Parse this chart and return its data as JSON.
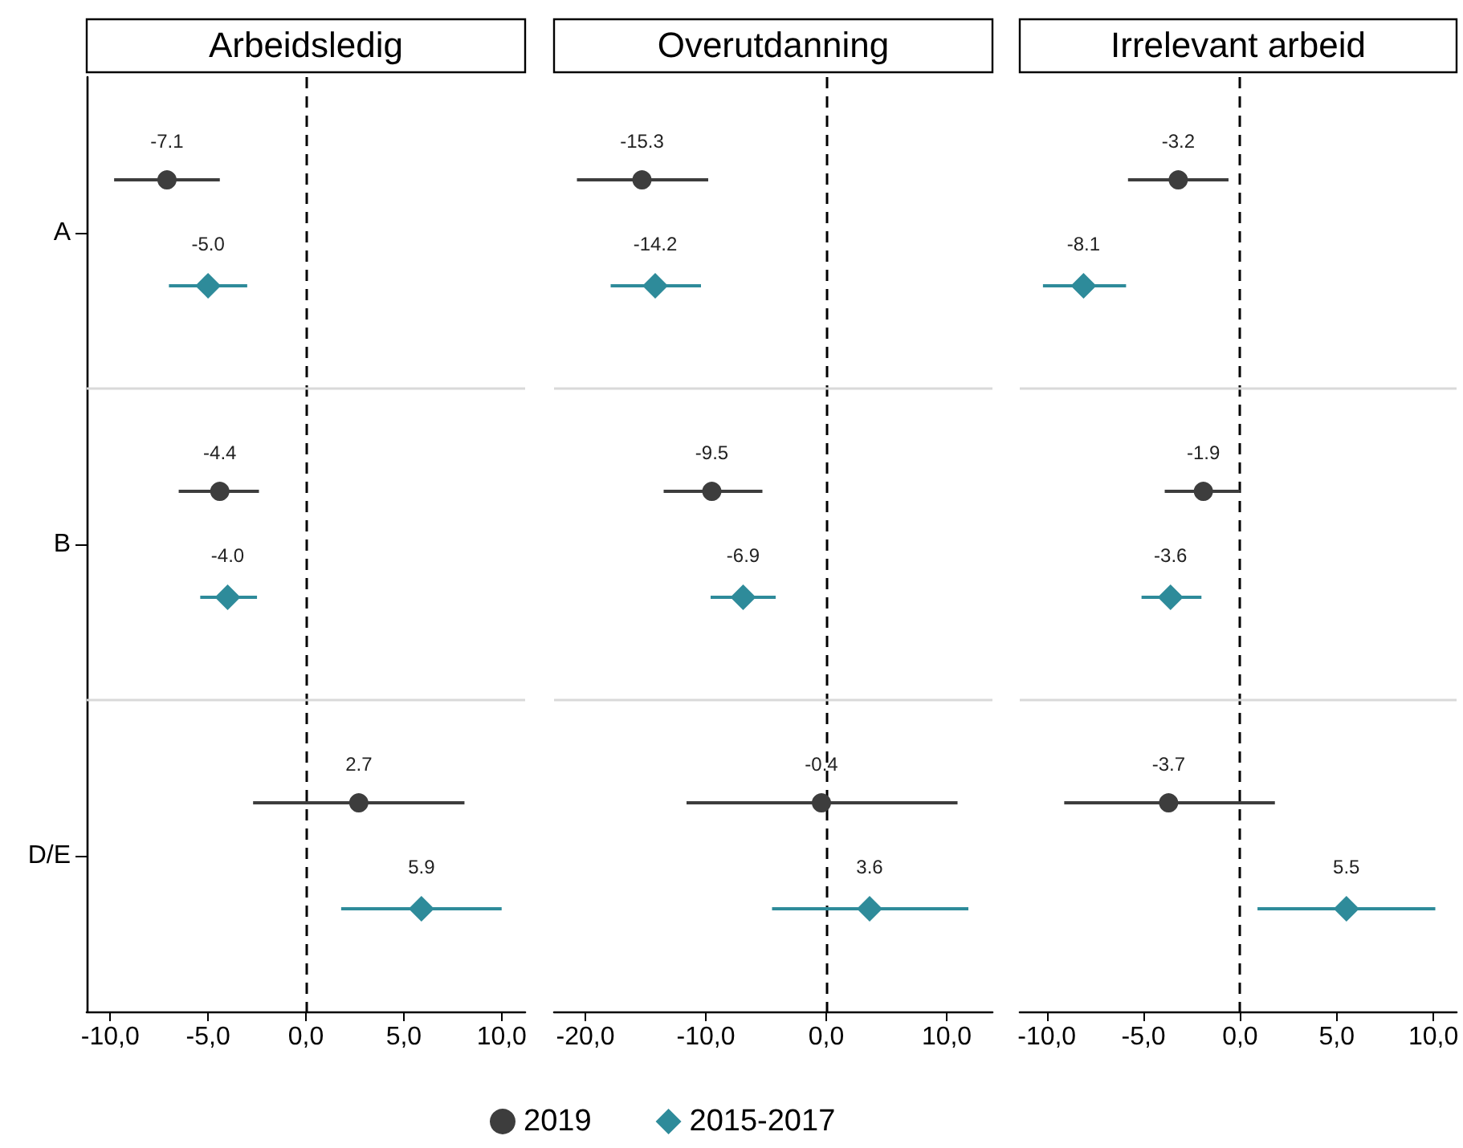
{
  "chart_data": [
    {
      "type": "scatter",
      "orientation": "horizontal",
      "title": "Arbeidsledig",
      "categories": [
        "A",
        "B",
        "D/E"
      ],
      "xlim": [
        -11.2,
        11.2
      ],
      "xticks": [
        {
          "value": -10,
          "label": "-10,0"
        },
        {
          "value": -5,
          "label": "-5,0"
        },
        {
          "value": 0,
          "label": "0,0"
        },
        {
          "value": 5,
          "label": "5,0"
        },
        {
          "value": 10,
          "label": "10,0"
        }
      ],
      "grid": "y",
      "legend": "bottom",
      "line_style": "solid",
      "ref_lines": [
        {
          "axis": "x",
          "value": 0,
          "color": "#000000",
          "line_style": "dashed"
        }
      ],
      "series": [
        {
          "name": "2019",
          "color": "#3d3d3d",
          "marker": "circle",
          "values": [
            -7.1,
            -4.4,
            2.7
          ],
          "errors": [
            [
              -9.8,
              -4.4
            ],
            [
              -6.5,
              -2.4
            ],
            [
              -2.7,
              8.1
            ]
          ],
          "value_labels": [
            "-7.1",
            "-4.4",
            "2.7"
          ]
        },
        {
          "name": "2015-2017",
          "color": "#2e8b9a",
          "marker": "diamond",
          "values": [
            -5.0,
            -4.0,
            5.9
          ],
          "errors": [
            [
              -7.0,
              -3.0
            ],
            [
              -5.4,
              -2.5
            ],
            [
              1.8,
              10.0
            ]
          ],
          "value_labels": [
            "-5.0",
            "-4.0",
            "5.9"
          ]
        }
      ]
    },
    {
      "type": "scatter",
      "orientation": "horizontal",
      "title": "Overutdanning",
      "categories": [
        null,
        null,
        null
      ],
      "xlim": [
        -22.6,
        13.8
      ],
      "tick_labels": "x",
      "xticks": [
        {
          "value": -20,
          "label": "-20,0"
        },
        {
          "value": -10,
          "label": "-10,0"
        },
        {
          "value": 0,
          "label": "0,0"
        },
        {
          "value": 10,
          "label": "10,0"
        }
      ],
      "grid": "y",
      "line_style": "solid",
      "ref_lines": [
        {
          "axis": "x",
          "value": 0,
          "color": "#000000",
          "line_style": "dashed"
        }
      ],
      "series": [
        {
          "color": "#3d3d3d",
          "marker": "circle",
          "values": [
            -15.3,
            -9.5,
            -0.4
          ],
          "errors": [
            [
              -20.7,
              -9.8
            ],
            [
              -13.5,
              -5.3
            ],
            [
              -11.6,
              10.9
            ]
          ],
          "value_labels": [
            "-15.3",
            "-9.5",
            "-0.4"
          ]
        },
        {
          "color": "#2e8b9a",
          "marker": "diamond",
          "values": [
            -14.2,
            -6.9,
            3.6
          ],
          "errors": [
            [
              -17.9,
              -10.4
            ],
            [
              -9.6,
              -4.2
            ],
            [
              -4.5,
              11.8
            ]
          ],
          "value_labels": [
            "-14.2",
            "-6.9",
            "3.6"
          ]
        }
      ]
    },
    {
      "type": "scatter",
      "orientation": "horizontal",
      "title": "Irrelevant arbeid",
      "categories": [
        null,
        null,
        null
      ],
      "xlim": [
        -11.4,
        11.2
      ],
      "tick_labels": "x",
      "xticks": [
        {
          "value": -10,
          "label": "-10,0"
        },
        {
          "value": -5,
          "label": "-5,0"
        },
        {
          "value": 0,
          "label": "0,0"
        },
        {
          "value": 5,
          "label": "5,0"
        },
        {
          "value": 10,
          "label": "10,0"
        }
      ],
      "grid": "y",
      "line_style": "solid",
      "ref_lines": [
        {
          "axis": "x",
          "value": 0,
          "color": "#000000",
          "line_style": "dashed"
        }
      ],
      "series": [
        {
          "color": "#3d3d3d",
          "marker": "circle",
          "values": [
            -3.2,
            -1.9,
            -3.7
          ],
          "errors": [
            [
              -5.8,
              -0.6
            ],
            [
              -3.9,
              0.0
            ],
            [
              -9.1,
              1.8
            ]
          ],
          "value_labels": [
            "-3.2",
            "-1.9",
            "-3.7"
          ]
        },
        {
          "color": "#2e8b9a",
          "marker": "diamond",
          "values": [
            -8.1,
            -3.6,
            5.5
          ],
          "errors": [
            [
              -10.2,
              -5.9
            ],
            [
              -5.1,
              -2.0
            ],
            [
              0.9,
              10.1
            ]
          ],
          "value_labels": [
            "-8.1",
            "-3.6",
            "5.5"
          ]
        }
      ]
    }
  ]
}
